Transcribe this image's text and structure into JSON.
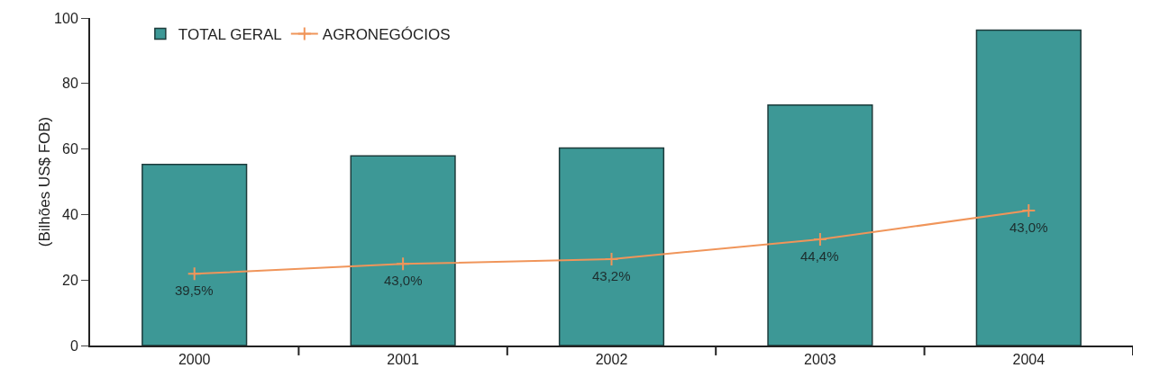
{
  "chart_data": {
    "type": "bar",
    "ylabel": "(Bilhões US$ FOB)",
    "categories": [
      "2000",
      "2001",
      "2002",
      "2003",
      "2004"
    ],
    "series": [
      {
        "name": "TOTAL GERAL",
        "color": "#3d9896",
        "values": [
          55.3,
          57.9,
          60.3,
          73.4,
          96.3
        ]
      },
      {
        "name": "AGRONEGÓCIOS",
        "type": "line",
        "color": "#f0955a",
        "marker": "cross",
        "values": [
          21.9,
          24.9,
          26.4,
          32.4,
          41.2
        ]
      }
    ],
    "annotations": [
      {
        "text": "39,5%",
        "x": "2000",
        "y": 21.9
      },
      {
        "text": "43,0%",
        "x": "2001",
        "y": 24.9
      },
      {
        "text": "43,2%",
        "x": "2002",
        "y": 26.4
      },
      {
        "text": "44,4%",
        "x": "2003",
        "y": 32.4
      },
      {
        "text": "43,0%",
        "x": "2004",
        "y": 41.2
      }
    ],
    "ylim": [
      0,
      100
    ],
    "yticks": [
      0,
      20,
      40,
      60,
      80,
      100
    ],
    "grid": false,
    "legend": "top left"
  }
}
